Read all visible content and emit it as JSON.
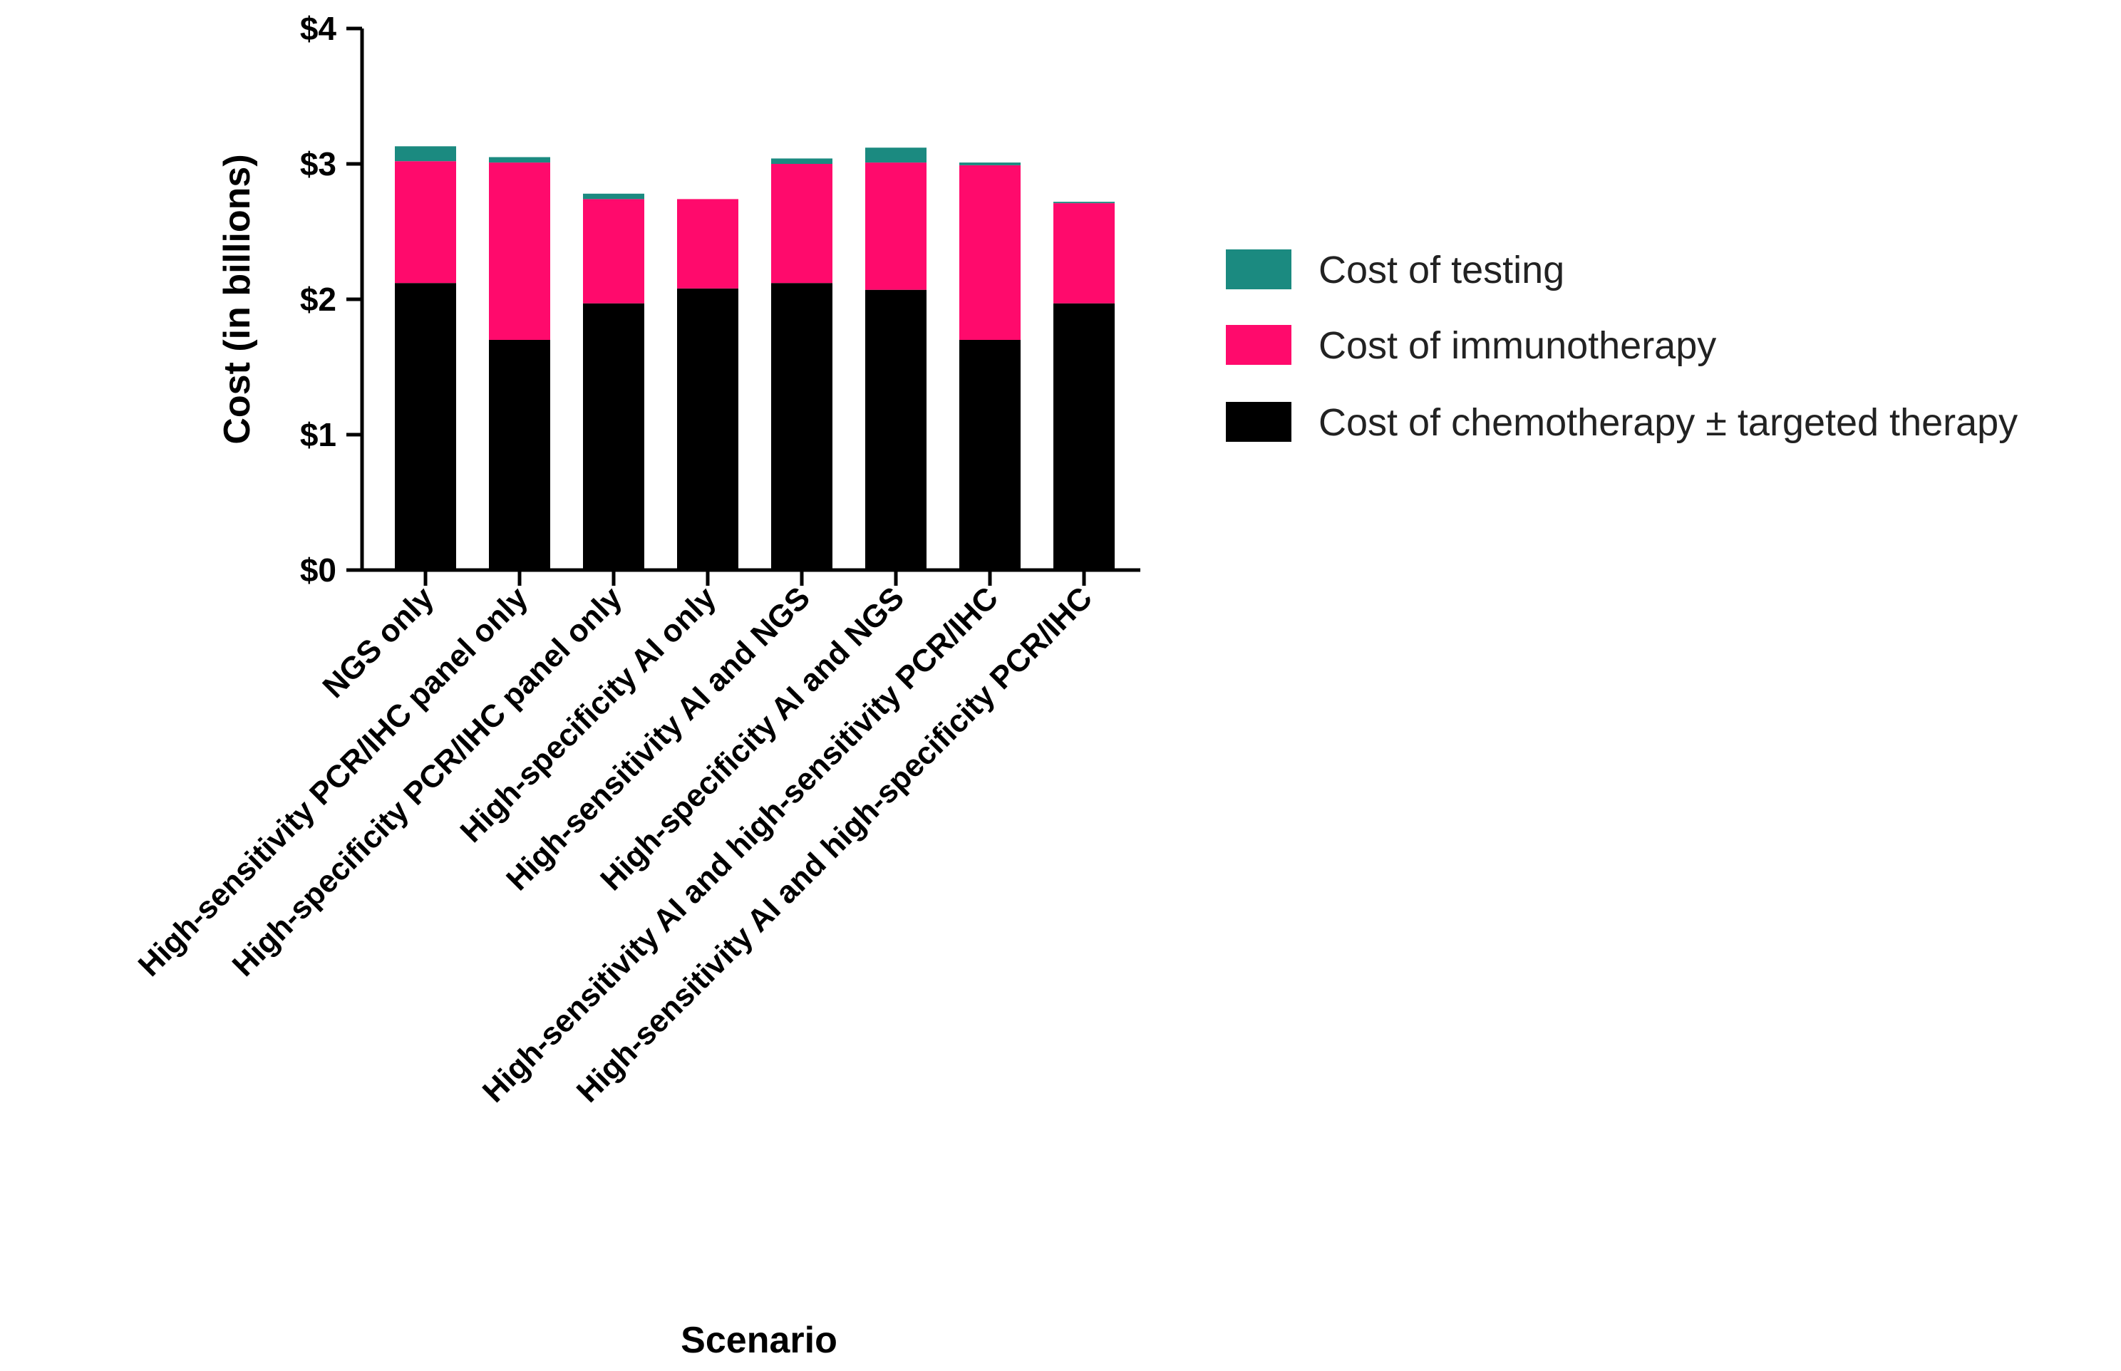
{
  "chart_data": {
    "type": "bar",
    "stacked": true,
    "title": "",
    "xlabel": "Scenario",
    "ylabel": "Cost (in billions)",
    "ylim": [
      0,
      4
    ],
    "yticks": [
      0,
      1,
      2,
      3,
      4
    ],
    "ytick_labels": [
      "$0",
      "$1",
      "$2",
      "$3",
      "$4"
    ],
    "categories": [
      "NGS only",
      "High-sensitivity PCR/IHC panel only",
      "High-specificity PCR/IHC panel only",
      "High-specificity AI only",
      "High-sensitivity AI and NGS",
      "High-specificity AI and NGS",
      "High-sensitivity AI and high-sensitivity PCR/IHC",
      "High-sensitivity AI and high-specificity PCR/IHC"
    ],
    "series": [
      {
        "name": "Cost of chemotherapy ± targeted therapy",
        "color": "#000000",
        "values": [
          2.12,
          1.7,
          1.97,
          2.08,
          2.12,
          2.07,
          1.7,
          1.97
        ]
      },
      {
        "name": "Cost of immunotherapy",
        "color": "#ff0a6c",
        "values": [
          0.9,
          1.31,
          0.77,
          0.66,
          0.88,
          0.94,
          1.29,
          0.74
        ]
      },
      {
        "name": "Cost of testing",
        "color": "#1b8a80",
        "values": [
          0.11,
          0.04,
          0.04,
          0.0,
          0.04,
          0.11,
          0.02,
          0.01
        ]
      }
    ],
    "legend": {
      "position": "right",
      "order": [
        "Cost of testing",
        "Cost of immunotherapy",
        "Cost of chemotherapy ± targeted therapy"
      ]
    },
    "grid": false
  }
}
